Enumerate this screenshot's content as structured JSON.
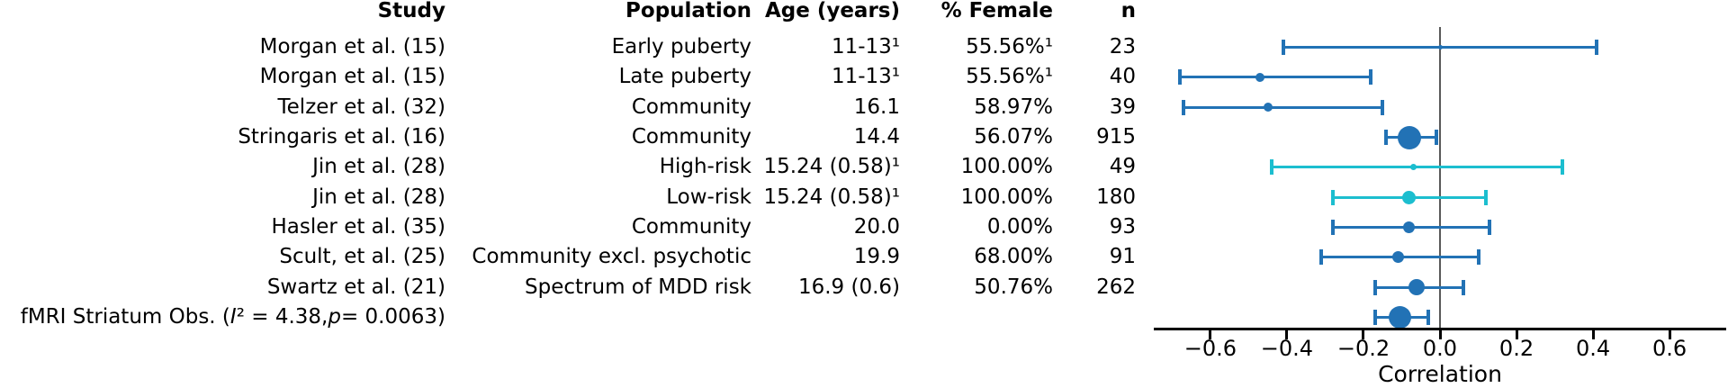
{
  "table": {
    "headers": {
      "study": "Study",
      "population": "Population",
      "age": "Age (years)",
      "female": "% Female",
      "n": "n"
    }
  },
  "chart_data": {
    "type": "forest_plot",
    "xlabel": "Correlation",
    "xlim": [
      -0.748,
      0.748
    ],
    "xticks": [
      -0.6,
      -0.4,
      -0.2,
      0.0,
      0.2,
      0.4,
      0.6
    ],
    "xtick_labels": [
      "−0.6",
      "−0.4",
      "−0.2",
      "0.0",
      "0.2",
      "0.4",
      "0.6"
    ],
    "reference_line_x": 0,
    "legend": "none",
    "grid": false,
    "colors": {
      "primary_blue": "#2272b5",
      "cyan": "#1cbecf",
      "reference_line": "#595959",
      "axis": "#000000"
    },
    "rows": [
      {
        "study": "Morgan et al. (15)",
        "population": "Early puberty",
        "age": "11-13¹",
        "female": "55.56%¹",
        "n": "23",
        "estimate": 0.0,
        "ci_low": -0.41,
        "ci_high": 0.41,
        "color": "#2272b5",
        "marker_size": 2.5
      },
      {
        "study": "Morgan et al. (15)",
        "population": "Late puberty",
        "age": "11-13¹",
        "female": "55.56%¹",
        "n": "40",
        "estimate": -0.47,
        "ci_low": -0.68,
        "ci_high": -0.18,
        "color": "#2272b5",
        "marker_size": 5
      },
      {
        "study": "Telzer et al. (32)",
        "population": "Community",
        "age": "16.1",
        "female": "58.97%",
        "n": "39",
        "estimate": -0.45,
        "ci_low": -0.67,
        "ci_high": -0.15,
        "color": "#2272b5",
        "marker_size": 5
      },
      {
        "study": "Stringaris et al. (16)",
        "population": "Community",
        "age": "14.4",
        "female": "56.07%",
        "n": "915",
        "estimate": -0.08,
        "ci_low": -0.14,
        "ci_high": -0.01,
        "color": "#2272b5",
        "marker_size": 13
      },
      {
        "study": "Jin et al. (28)",
        "population": "High-risk",
        "age": "15.24 (0.58)¹",
        "female": "100.00%",
        "n": "49",
        "estimate": -0.07,
        "ci_low": -0.44,
        "ci_high": 0.32,
        "color": "#1cbecf",
        "marker_size": 3.5
      },
      {
        "study": "Jin et al. (28)",
        "population": "Low-risk",
        "age": "15.24 (0.58)¹",
        "female": "100.00%",
        "n": "180",
        "estimate": -0.08,
        "ci_low": -0.28,
        "ci_high": 0.12,
        "color": "#1cbecf",
        "marker_size": 7.5
      },
      {
        "study": "Hasler et al. (35)",
        "population": "Community",
        "age": "20.0",
        "female": "0.00%",
        "n": "93",
        "estimate": -0.08,
        "ci_low": -0.28,
        "ci_high": 0.13,
        "color": "#2272b5",
        "marker_size": 6.5
      },
      {
        "study": "Scult, et al. (25)",
        "population": "Community excl. psychotic",
        "age": "19.9",
        "female": "68.00%",
        "n": "91",
        "estimate": -0.11,
        "ci_low": -0.31,
        "ci_high": 0.1,
        "color": "#2272b5",
        "marker_size": 6.5
      },
      {
        "study": "Swartz et al. (21)",
        "population": "Spectrum of MDD risk",
        "age": "16.9 (0.6)",
        "female": "50.76%",
        "n": "262",
        "estimate": -0.06,
        "ci_low": -0.17,
        "ci_high": 0.06,
        "color": "#2272b5",
        "marker_size": 9
      }
    ],
    "summary_row": {
      "label_parts": [
        {
          "text": "fMRI Striatum Obs. (",
          "italic": false
        },
        {
          "text": "I",
          "italic": true
        },
        {
          "text": "² = 4.38, ",
          "italic": false
        },
        {
          "text": "p",
          "italic": true
        },
        {
          "text": " = 0.0063)",
          "italic": false
        }
      ],
      "population": "",
      "age": "",
      "female": "",
      "n": "",
      "estimate": -0.105,
      "ci_low": -0.17,
      "ci_high": -0.03,
      "color": "#2272b5",
      "marker_size": 12.5
    }
  }
}
